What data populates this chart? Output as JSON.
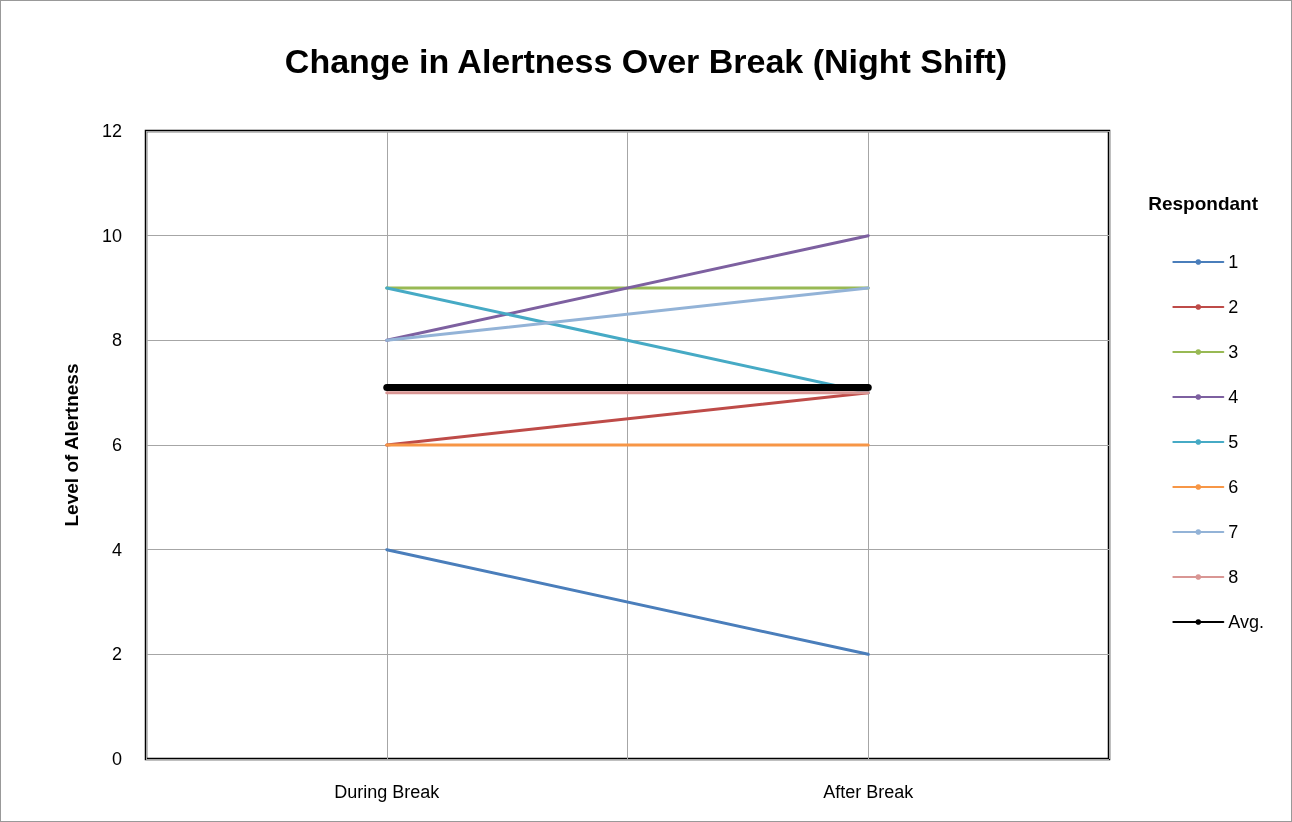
{
  "chart_data": {
    "type": "line",
    "title": "Change in Alertness Over Break (Night Shift)",
    "ylabel": "Level of Alertness",
    "legend_title": "Respondant",
    "categories": [
      "During Break",
      "After Break"
    ],
    "series": [
      {
        "name": "1",
        "color": "#4a7ebb",
        "values": [
          4,
          2
        ]
      },
      {
        "name": "2",
        "color": "#be4b48",
        "values": [
          6,
          7
        ]
      },
      {
        "name": "3",
        "color": "#98b954",
        "values": [
          9,
          9
        ]
      },
      {
        "name": "4",
        "color": "#7d60a0",
        "values": [
          8,
          10
        ]
      },
      {
        "name": "5",
        "color": "#46aac5",
        "values": [
          9,
          7
        ]
      },
      {
        "name": "6",
        "color": "#f79646",
        "values": [
          6,
          6
        ]
      },
      {
        "name": "7",
        "color": "#93b3d7",
        "values": [
          8,
          9
        ]
      },
      {
        "name": "8",
        "color": "#d99694",
        "values": [
          7,
          7
        ]
      },
      {
        "name": "Avg.",
        "color": "#000000",
        "values": [
          7.1,
          7.1
        ]
      }
    ],
    "ylim": [
      0,
      12
    ],
    "yticks": [
      0,
      2,
      4,
      6,
      8,
      10,
      12
    ],
    "grid": true,
    "legend": "right",
    "marker": "none",
    "line_style": "solid"
  }
}
